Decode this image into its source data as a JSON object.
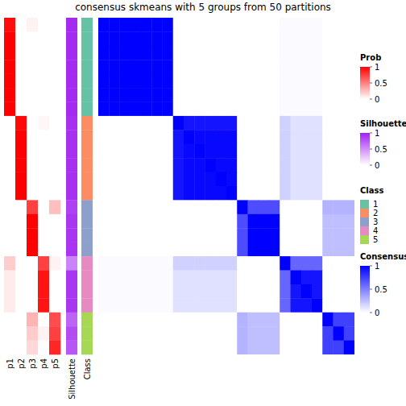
{
  "chart_data": {
    "type": "heatmap",
    "title": "consensus skmeans with 5 groups from 50 partitions",
    "tick_labels": false,
    "membership": {
      "names": [
        "p1",
        "p2",
        "p3",
        "p4",
        "p5"
      ],
      "color": "#ff0000",
      "legend": {
        "title": "Prob",
        "range": [
          0,
          1
        ],
        "ticks": [
          0,
          0.5,
          1
        ]
      },
      "values": [
        [
          0.95,
          0,
          0.05,
          0,
          0
        ],
        [
          1,
          0,
          0,
          0,
          0
        ],
        [
          1,
          0,
          0,
          0,
          0
        ],
        [
          1,
          0,
          0,
          0,
          0
        ],
        [
          1,
          0,
          0,
          0,
          0
        ],
        [
          1,
          0,
          0,
          0,
          0
        ],
        [
          1,
          0,
          0,
          0,
          0
        ],
        [
          0,
          0.97,
          0,
          0.03,
          0
        ],
        [
          0,
          1,
          0,
          0,
          0
        ],
        [
          0,
          1,
          0,
          0,
          0
        ],
        [
          0,
          1,
          0,
          0,
          0
        ],
        [
          0,
          1,
          0,
          0,
          0
        ],
        [
          0,
          1,
          0,
          0,
          0
        ],
        [
          0,
          0,
          0.75,
          0,
          0.25
        ],
        [
          0,
          0,
          1,
          0,
          0
        ],
        [
          0,
          0,
          1,
          0,
          0
        ],
        [
          0,
          0,
          1,
          0,
          0
        ],
        [
          0.2,
          0,
          0,
          0.75,
          0.05
        ],
        [
          0.08,
          0,
          0,
          0.92,
          0
        ],
        [
          0.08,
          0,
          0,
          0.92,
          0
        ],
        [
          0.08,
          0,
          0,
          0.92,
          0
        ],
        [
          0,
          0,
          0.3,
          0,
          0.7
        ],
        [
          0,
          0,
          0.2,
          0.05,
          0.75
        ],
        [
          0,
          0,
          0.15,
          0,
          0.85
        ]
      ]
    },
    "silhouette": {
      "name": "Silhouette",
      "color": "#a020f0",
      "legend": {
        "title": "Silhouette",
        "range": [
          0,
          1
        ],
        "ticks": [
          0,
          0.5,
          1
        ]
      },
      "values": [
        0.95,
        0.95,
        0.95,
        0.95,
        0.95,
        0.95,
        0.95,
        0.93,
        0.93,
        0.93,
        0.93,
        0.93,
        0.93,
        0.85,
        0.9,
        0.9,
        0.9,
        0.55,
        0.9,
        0.9,
        0.9,
        0.7,
        0.8,
        0.75
      ]
    },
    "class": {
      "name": "Class",
      "legend": {
        "title": "Class",
        "levels": [
          1,
          2,
          3,
          4,
          5
        ]
      },
      "colors": [
        "#66c2a5",
        "#fc8d62",
        "#8da0cb",
        "#e78ac3",
        "#a6d854"
      ],
      "values": [
        1,
        1,
        1,
        1,
        1,
        1,
        1,
        2,
        2,
        2,
        2,
        2,
        2,
        3,
        3,
        3,
        3,
        4,
        4,
        4,
        4,
        5,
        5,
        5
      ]
    },
    "consensus": {
      "color": "#0000ff",
      "legend": {
        "title": "Consensus",
        "range": [
          0,
          1
        ],
        "ticks": [
          0,
          0.5,
          1
        ]
      },
      "values": [
        [
          1,
          1,
          1,
          1,
          1,
          1,
          1,
          0,
          0,
          0,
          0,
          0,
          0,
          0,
          0,
          0,
          0,
          0.02,
          0.02,
          0.02,
          0.02,
          0,
          0,
          0
        ],
        [
          1,
          1,
          1,
          1,
          1,
          1,
          1,
          0,
          0,
          0,
          0,
          0,
          0,
          0,
          0,
          0,
          0,
          0.02,
          0.02,
          0.02,
          0.02,
          0,
          0,
          0
        ],
        [
          1,
          1,
          1,
          1,
          1,
          1,
          1,
          0,
          0,
          0,
          0,
          0,
          0,
          0,
          0,
          0,
          0,
          0.02,
          0.02,
          0.02,
          0.02,
          0,
          0,
          0
        ],
        [
          1,
          1,
          1,
          1,
          1,
          1,
          1,
          0,
          0,
          0,
          0,
          0,
          0,
          0,
          0,
          0,
          0,
          0.02,
          0.02,
          0.02,
          0.02,
          0,
          0,
          0
        ],
        [
          1,
          1,
          1,
          1,
          1,
          1,
          1,
          0,
          0,
          0,
          0,
          0,
          0,
          0,
          0,
          0,
          0,
          0.02,
          0.02,
          0.02,
          0.02,
          0,
          0,
          0
        ],
        [
          1,
          1,
          1,
          1,
          1,
          1,
          1,
          0,
          0,
          0,
          0,
          0,
          0,
          0,
          0,
          0,
          0,
          0.02,
          0.02,
          0.02,
          0.02,
          0,
          0,
          0
        ],
        [
          1,
          1,
          1,
          1,
          1,
          1,
          1,
          0,
          0,
          0,
          0,
          0,
          0,
          0,
          0,
          0,
          0,
          0.02,
          0.02,
          0.02,
          0.02,
          0,
          0,
          0
        ],
        [
          0,
          0,
          0,
          0,
          0,
          0,
          0,
          1,
          0.92,
          0.92,
          0.92,
          0.92,
          0.92,
          0,
          0,
          0,
          0,
          0.18,
          0.12,
          0.12,
          0.12,
          0,
          0,
          0
        ],
        [
          0,
          0,
          0,
          0,
          0,
          0,
          0,
          0.92,
          1,
          0.97,
          0.97,
          0.97,
          0.97,
          0,
          0,
          0,
          0,
          0.18,
          0.12,
          0.12,
          0.12,
          0,
          0,
          0
        ],
        [
          0,
          0,
          0,
          0,
          0,
          0,
          0,
          0.92,
          0.97,
          1,
          0.97,
          0.97,
          0.97,
          0,
          0,
          0,
          0,
          0.18,
          0.12,
          0.12,
          0.12,
          0,
          0,
          0
        ],
        [
          0,
          0,
          0,
          0,
          0,
          0,
          0,
          0.92,
          0.97,
          0.97,
          1,
          0.97,
          0.97,
          0,
          0,
          0,
          0,
          0.18,
          0.12,
          0.12,
          0.12,
          0,
          0,
          0
        ],
        [
          0,
          0,
          0,
          0,
          0,
          0,
          0,
          0.92,
          0.97,
          0.97,
          0.97,
          1,
          0.97,
          0,
          0,
          0,
          0,
          0.18,
          0.12,
          0.12,
          0.12,
          0,
          0,
          0
        ],
        [
          0,
          0,
          0,
          0,
          0,
          0,
          0,
          0.92,
          0.97,
          0.97,
          0.97,
          0.97,
          1,
          0,
          0,
          0,
          0,
          0.18,
          0.12,
          0.12,
          0.12,
          0,
          0,
          0
        ],
        [
          0,
          0,
          0,
          0,
          0,
          0,
          0,
          0,
          0,
          0,
          0,
          0,
          0,
          1,
          0.7,
          0.7,
          0.7,
          0,
          0,
          0,
          0,
          0.3,
          0.3,
          0.3
        ],
        [
          0,
          0,
          0,
          0,
          0,
          0,
          0,
          0,
          0,
          0,
          0,
          0,
          0,
          0.7,
          1,
          1,
          1,
          0,
          0,
          0,
          0,
          0.25,
          0.25,
          0.25
        ],
        [
          0,
          0,
          0,
          0,
          0,
          0,
          0,
          0,
          0,
          0,
          0,
          0,
          0,
          0.7,
          1,
          1,
          1,
          0,
          0,
          0,
          0,
          0.25,
          0.25,
          0.25
        ],
        [
          0,
          0,
          0,
          0,
          0,
          0,
          0,
          0,
          0,
          0,
          0,
          0,
          0,
          0.7,
          1,
          1,
          1,
          0,
          0,
          0,
          0,
          0.25,
          0.25,
          0.25
        ],
        [
          0.02,
          0.02,
          0.02,
          0.02,
          0.02,
          0.02,
          0.02,
          0.18,
          0.18,
          0.18,
          0.18,
          0.18,
          0.18,
          0,
          0,
          0,
          0,
          1,
          0.6,
          0.6,
          0.6,
          0,
          0,
          0
        ],
        [
          0.02,
          0.02,
          0.02,
          0.02,
          0.02,
          0.02,
          0.02,
          0.12,
          0.12,
          0.12,
          0.12,
          0.12,
          0.12,
          0,
          0,
          0,
          0,
          0.6,
          1,
          0.92,
          0.92,
          0,
          0,
          0
        ],
        [
          0.02,
          0.02,
          0.02,
          0.02,
          0.02,
          0.02,
          0.02,
          0.12,
          0.12,
          0.12,
          0.12,
          0.12,
          0.12,
          0,
          0,
          0,
          0,
          0.6,
          0.92,
          1,
          0.92,
          0,
          0,
          0
        ],
        [
          0.02,
          0.02,
          0.02,
          0.02,
          0.02,
          0.02,
          0.02,
          0.12,
          0.12,
          0.12,
          0.12,
          0.12,
          0.12,
          0,
          0,
          0,
          0,
          0.6,
          0.92,
          0.92,
          1,
          0,
          0,
          0
        ],
        [
          0,
          0,
          0,
          0,
          0,
          0,
          0,
          0,
          0,
          0,
          0,
          0,
          0,
          0.3,
          0.25,
          0.25,
          0.25,
          0,
          0,
          0,
          0,
          1,
          0.75,
          0.75
        ],
        [
          0,
          0,
          0,
          0,
          0,
          0,
          0,
          0,
          0,
          0,
          0,
          0,
          0,
          0.3,
          0.25,
          0.25,
          0.25,
          0,
          0,
          0,
          0,
          0.75,
          1,
          0.75
        ],
        [
          0,
          0,
          0,
          0,
          0,
          0,
          0,
          0,
          0,
          0,
          0,
          0,
          0,
          0.3,
          0.25,
          0.25,
          0.25,
          0,
          0,
          0,
          0,
          0.75,
          0.75,
          1
        ]
      ]
    }
  }
}
